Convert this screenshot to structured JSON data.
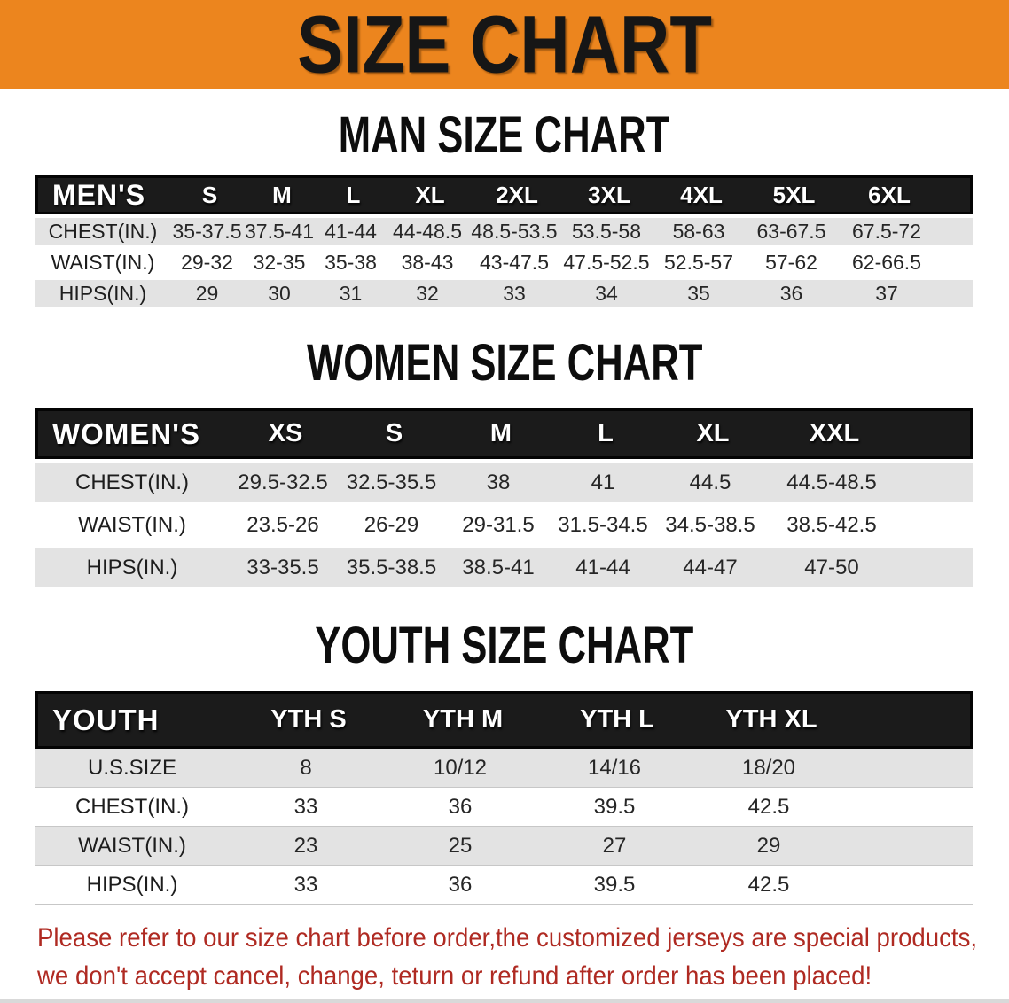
{
  "banner": {
    "title": "SIZE CHART"
  },
  "colors": {
    "banner_bg": "#EC851E",
    "header_bar": "#1B1B1B",
    "band_gray": "#E3E3E3",
    "disclaimer_red": "#AF2A22"
  },
  "sections": [
    {
      "id": "men",
      "heading": "MAN SIZE CHART",
      "corner_label": "MEN'S",
      "sizes": [
        "S",
        "M",
        "L",
        "XL",
        "2XL",
        "3XL",
        "4XL",
        "5XL",
        "6XL"
      ],
      "rows": [
        {
          "label": "CHEST(IN.)",
          "values": [
            "35-37.5",
            "37.5-41",
            "41-44",
            "44-48.5",
            "48.5-53.5",
            "53.5-58",
            "58-63",
            "63-67.5",
            "67.5-72"
          ]
        },
        {
          "label": "WAIST(IN.)",
          "values": [
            "29-32",
            "32-35",
            "35-38",
            "38-43",
            "43-47.5",
            "47.5-52.5",
            "52.5-57",
            "57-62",
            "62-66.5"
          ]
        },
        {
          "label": "HIPS(IN.)",
          "values": [
            "29",
            "30",
            "31",
            "32",
            "33",
            "34",
            "35",
            "36",
            "37"
          ]
        }
      ]
    },
    {
      "id": "women",
      "heading": "WOMEN SIZE CHART",
      "corner_label": "WOMEN'S",
      "sizes": [
        "XS",
        "S",
        "M",
        "L",
        "XL",
        "XXL"
      ],
      "rows": [
        {
          "label": "CHEST(IN.)",
          "values": [
            "29.5-32.5",
            "32.5-35.5",
            "38",
            "41",
            "44.5",
            "44.5-48.5"
          ]
        },
        {
          "label": "WAIST(IN.)",
          "values": [
            "23.5-26",
            "26-29",
            "29-31.5",
            "31.5-34.5",
            "34.5-38.5",
            "38.5-42.5"
          ]
        },
        {
          "label": "HIPS(IN.)",
          "values": [
            "33-35.5",
            "35.5-38.5",
            "38.5-41",
            "41-44",
            "44-47",
            "47-50"
          ]
        }
      ]
    },
    {
      "id": "youth",
      "heading": "YOUTH SIZE CHART",
      "corner_label": "YOUTH",
      "sizes": [
        "YTH S",
        "YTH M",
        "YTH L",
        "YTH XL"
      ],
      "rows": [
        {
          "label": "U.S.SIZE",
          "values": [
            "8",
            "10/12",
            "14/16",
            "18/20"
          ]
        },
        {
          "label": "CHEST(IN.)",
          "values": [
            "33",
            "36",
            "39.5",
            "42.5"
          ]
        },
        {
          "label": "WAIST(IN.)",
          "values": [
            "23",
            "25",
            "27",
            "29"
          ]
        },
        {
          "label": "HIPS(IN.)",
          "values": [
            "33",
            "36",
            "39.5",
            "42.5"
          ]
        }
      ]
    }
  ],
  "disclaimer": {
    "line1": "Please refer to our size chart before order,the customized jerseys are special products,",
    "line2": "we don't accept cancel, change, teturn or refund after order has been placed!"
  }
}
